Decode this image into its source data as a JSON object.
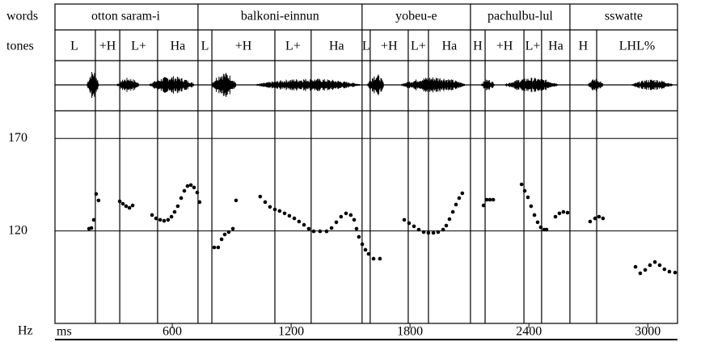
{
  "chart_data": {
    "type": "scatter",
    "row_labels": {
      "words": "words",
      "tones": "tones"
    },
    "x_label": "ms",
    "y_label": "Hz",
    "xlim": [
      0,
      3150
    ],
    "ylim": [
      70,
      185
    ],
    "xticks": [
      600,
      1200,
      1800,
      2400,
      3000
    ],
    "yticks": [
      120,
      170
    ],
    "color": "#000000",
    "words": [
      {
        "label": "otton saram-i",
        "start": 0,
        "end": 730
      },
      {
        "label": "balkoni-einnun",
        "start": 730,
        "end": 1558
      },
      {
        "label": "yobeu-e",
        "start": 1558,
        "end": 2105
      },
      {
        "label": "pachulbu-lul",
        "start": 2105,
        "end": 2607
      },
      {
        "label": "sswatte",
        "start": 2607,
        "end": 3150
      }
    ],
    "tones": [
      "L",
      "+H",
      "L+",
      "Ha",
      "L",
      "+H",
      "L+",
      "Ha",
      "L",
      "+H",
      "L+",
      "Ha",
      "H",
      "+H",
      "L+",
      "Ha",
      "H",
      "LHL%"
    ],
    "tone_boundaries": [
      212,
      335,
      526,
      730,
      800,
      1118,
      1301,
      1558,
      1599,
      1791,
      1893,
      2105,
      2179,
      2375,
      2464,
      2607,
      2742
    ],
    "x": [
      180,
      192,
      204,
      216,
      228,
      335,
      351,
      367,
      384,
      400,
      498,
      518,
      539,
      559,
      579,
      596,
      612,
      628,
      645,
      661,
      677,
      694,
      710,
      726,
      738,
      812,
      832,
      849,
      865,
      885,
      906,
      922,
      1044,
      1069,
      1093,
      1118,
      1142,
      1167,
      1191,
      1216,
      1240,
      1265,
      1289,
      1314,
      1346,
      1379,
      1404,
      1428,
      1452,
      1477,
      1501,
      1518,
      1530,
      1542,
      1559,
      1575,
      1591,
      1616,
      1648,
      1771,
      1795,
      1820,
      1844,
      1869,
      1893,
      1918,
      1942,
      1967,
      1983,
      1999,
      2016,
      2032,
      2048,
      2064,
      2171,
      2187,
      2203,
      2220,
      2363,
      2379,
      2395,
      2411,
      2428,
      2444,
      2460,
      2477,
      2489,
      2534,
      2554,
      2574,
      2595,
      2709,
      2734,
      2754,
      2774,
      2938,
      2962,
      2987,
      3011,
      3036,
      3060,
      3084,
      3109,
      3138
    ],
    "values": [
      121.2,
      121.6,
      126.0,
      140.0,
      136.5,
      136.0,
      134.7,
      133.4,
      132.5,
      133.8,
      128.6,
      126.8,
      126.0,
      125.5,
      126.0,
      127.7,
      130.3,
      133.4,
      137.8,
      141.7,
      144.3,
      144.8,
      143.5,
      140.8,
      135.6,
      111.1,
      111.1,
      115.5,
      118.1,
      119.4,
      121.2,
      136.5,
      138.6,
      135.6,
      133.0,
      131.6,
      130.8,
      129.5,
      128.2,
      126.8,
      125.1,
      123.3,
      121.2,
      119.8,
      119.8,
      119.8,
      121.6,
      124.7,
      127.7,
      129.5,
      128.6,
      126.0,
      121.2,
      116.8,
      112.8,
      109.8,
      107.6,
      105.0,
      105.0,
      126.0,
      124.2,
      122.5,
      120.7,
      119.4,
      119.0,
      119.0,
      119.4,
      120.7,
      122.9,
      126.4,
      130.3,
      134.3,
      137.8,
      140.4,
      133.8,
      136.9,
      136.9,
      136.9,
      145.2,
      141.7,
      138.2,
      133.4,
      128.6,
      124.7,
      122.0,
      120.7,
      120.7,
      127.7,
      129.5,
      130.3,
      129.9,
      125.1,
      126.8,
      127.7,
      126.8,
      100.6,
      97.1,
      98.9,
      101.5,
      103.2,
      101.5,
      99.3,
      98.0,
      97.5
    ]
  }
}
